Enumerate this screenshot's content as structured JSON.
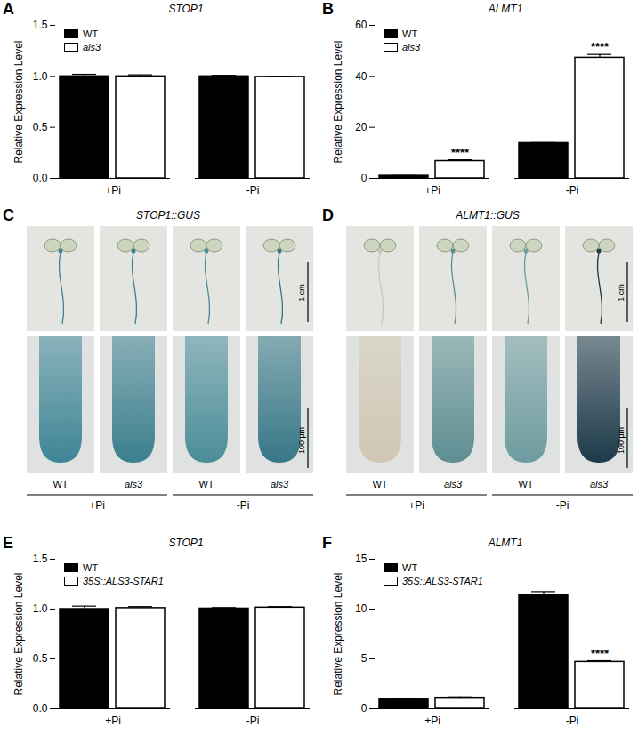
{
  "chart_data": [
    {
      "panel": "A",
      "type": "bar",
      "title": "STOP1",
      "y_label": "Relative Expression Level",
      "categories": [
        "+Pi",
        "-Pi"
      ],
      "series": [
        {
          "name": "WT",
          "color": "#000000",
          "values": [
            1.0,
            1.0
          ],
          "errors": [
            0.02,
            0.01
          ]
        },
        {
          "name": "als3",
          "color": "#ffffff",
          "values": [
            1.0,
            0.995
          ],
          "errors": [
            0.015,
            0.005
          ]
        }
      ],
      "ylim": [
        0,
        1.5
      ],
      "yticks": [
        {
          "value": 0,
          "label": "0.0"
        },
        {
          "value": 0.5,
          "label": "0.5"
        },
        {
          "value": 1,
          "label": "1.0"
        },
        {
          "value": 1.5,
          "label": "1.5"
        }
      ],
      "legend": "top-left"
    },
    {
      "panel": "B",
      "type": "bar",
      "title": "ALMT1",
      "y_label": "Relative Expression Level",
      "categories": [
        "+Pi",
        "-Pi"
      ],
      "series": [
        {
          "name": "WT",
          "color": "#000000",
          "values": [
            1.0,
            13.8
          ],
          "errors": [
            0.1,
            0.2
          ]
        },
        {
          "name": "als3",
          "color": "#ffffff",
          "values": [
            6.8,
            47.3
          ],
          "errors": [
            0.5,
            1.3
          ]
        }
      ],
      "ylim": [
        0,
        60
      ],
      "yticks": [
        0,
        20,
        40,
        60
      ],
      "legend": "top-left",
      "annotations": [
        {
          "category": "+Pi",
          "series": "als3",
          "text": "****"
        },
        {
          "category": "-Pi",
          "series": "als3",
          "text": "****"
        }
      ]
    },
    {
      "panel": "C",
      "type": "image",
      "title": "STOP1::GUS",
      "samples": [
        "WT",
        "als3",
        "WT",
        "als3"
      ],
      "conditions": [
        "+Pi",
        "-Pi"
      ],
      "scale_bars": [
        "1 cm",
        "100 µm"
      ],
      "colors": [
        "#3e8596",
        "#3b7f8e",
        "#4a8d99",
        "#367787"
      ]
    },
    {
      "panel": "D",
      "type": "image",
      "title": "ALMT1::GUS",
      "samples": [
        "WT",
        "als3",
        "WT",
        "als3"
      ],
      "conditions": [
        "+Pi",
        "-Pi"
      ],
      "scale_bars": [
        "1 cm",
        "100 µm"
      ],
      "colors": [
        "#cfc7b2",
        "#5e8e92",
        "#6e9ca0",
        "#1d3a4a"
      ]
    },
    {
      "panel": "E",
      "type": "bar",
      "title": "STOP1",
      "y_label": "Relative Expression Level",
      "categories": [
        "+Pi",
        "-Pi"
      ],
      "series": [
        {
          "name": "WT",
          "color": "#000000",
          "values": [
            1.0,
            1.005
          ],
          "errors": [
            0.03,
            0.01
          ]
        },
        {
          "name": "35S::ALS3-STAR1",
          "color": "#ffffff",
          "values": [
            1.01,
            1.015
          ],
          "errors": [
            0.015,
            0.01
          ]
        }
      ],
      "ylim": [
        0,
        1.5
      ],
      "yticks": [
        {
          "value": 0,
          "label": "0.0"
        },
        {
          "value": 0.5,
          "label": "0.5"
        },
        {
          "value": 1,
          "label": "1.0"
        },
        {
          "value": 1.5,
          "label": "1.5"
        }
      ],
      "legend": "top-left"
    },
    {
      "panel": "F",
      "type": "bar",
      "title": "ALMT1",
      "y_label": "Relative Expression Level",
      "categories": [
        "+Pi",
        "-Pi"
      ],
      "series": [
        {
          "name": "WT",
          "color": "#000000",
          "values": [
            1.0,
            11.4
          ],
          "errors": [
            0.05,
            0.35
          ]
        },
        {
          "name": "35S::ALS3-STAR1",
          "color": "#ffffff",
          "values": [
            1.1,
            4.7
          ],
          "errors": [
            0.08,
            0.12
          ]
        }
      ],
      "ylim": [
        0,
        15
      ],
      "yticks": [
        0,
        5,
        10,
        15
      ],
      "legend": "top-left",
      "annotations": [
        {
          "category": "-Pi",
          "series": "35S::ALS3-STAR1",
          "text": "****"
        }
      ]
    }
  ]
}
